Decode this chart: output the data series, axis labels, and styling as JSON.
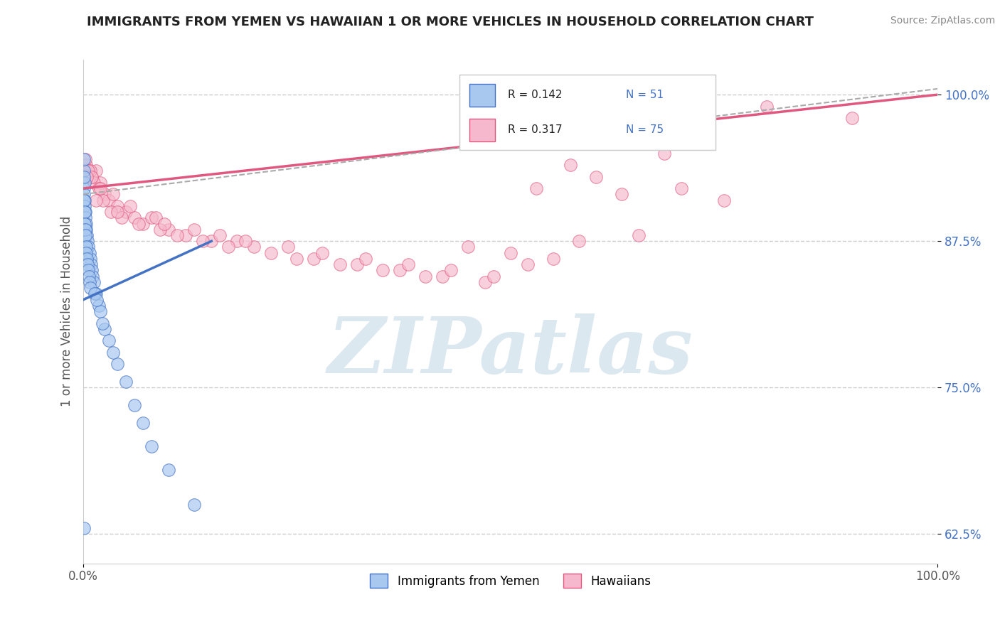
{
  "title": "IMMIGRANTS FROM YEMEN VS HAWAIIAN 1 OR MORE VEHICLES IN HOUSEHOLD CORRELATION CHART",
  "source": "Source: ZipAtlas.com",
  "ylabel": "1 or more Vehicles in Household",
  "yticks": [
    62.5,
    75.0,
    87.5,
    100.0
  ],
  "ytick_labels": [
    "62.5%",
    "75.0%",
    "87.5%",
    "100.0%"
  ],
  "blue_color": "#a8c8f0",
  "pink_color": "#f5b8cc",
  "blue_line_color": "#4472c4",
  "pink_line_color": "#e05880",
  "dashed_line_color": "#aaaaaa",
  "watermark": "ZIPatlas",
  "watermark_color_zip": "#c8d8e8",
  "watermark_color_atlas": "#d0dce8",
  "blue_scatter_x": [
    0.05,
    0.08,
    0.1,
    0.12,
    0.15,
    0.18,
    0.2,
    0.25,
    0.3,
    0.35,
    0.4,
    0.5,
    0.6,
    0.7,
    0.8,
    0.9,
    1.0,
    1.1,
    1.2,
    1.5,
    1.8,
    2.0,
    2.5,
    3.0,
    4.0,
    5.0,
    6.0,
    8.0,
    10.0,
    13.0,
    0.05,
    0.07,
    0.1,
    0.13,
    0.16,
    0.2,
    0.22,
    0.28,
    0.32,
    0.38,
    0.45,
    0.55,
    0.65,
    0.75,
    0.85,
    1.3,
    1.6,
    2.2,
    3.5,
    7.0,
    0.05
  ],
  "blue_scatter_y": [
    93.5,
    92.0,
    91.5,
    92.5,
    91.0,
    90.5,
    90.0,
    89.5,
    89.0,
    88.5,
    88.0,
    87.5,
    87.0,
    86.5,
    86.0,
    85.5,
    85.0,
    84.5,
    84.0,
    83.0,
    82.0,
    81.5,
    80.0,
    79.0,
    77.0,
    75.5,
    73.5,
    70.0,
    68.0,
    65.0,
    94.5,
    93.0,
    91.0,
    90.0,
    89.0,
    88.5,
    88.0,
    87.0,
    86.5,
    86.0,
    85.5,
    85.0,
    84.5,
    84.0,
    83.5,
    83.0,
    82.5,
    80.5,
    78.0,
    72.0,
    63.0
  ],
  "pink_scatter_x": [
    0.5,
    1.0,
    1.5,
    2.0,
    2.5,
    3.0,
    4.0,
    5.0,
    6.0,
    7.0,
    8.0,
    10.0,
    12.0,
    15.0,
    18.0,
    20.0,
    25.0,
    30.0,
    35.0,
    40.0,
    45.0,
    50.0,
    55.0,
    60.0,
    65.0,
    70.0,
    75.0,
    0.3,
    0.8,
    1.2,
    1.8,
    2.3,
    3.2,
    4.5,
    6.5,
    9.0,
    11.0,
    14.0,
    17.0,
    22.0,
    27.0,
    32.0,
    37.0,
    42.0,
    47.0,
    52.0,
    58.0,
    63.0,
    68.0,
    0.2,
    0.6,
    1.0,
    2.0,
    3.5,
    5.5,
    8.5,
    13.0,
    19.0,
    28.0,
    38.0,
    48.0,
    57.0,
    0.4,
    1.5,
    4.0,
    9.5,
    16.0,
    24.0,
    33.0,
    43.0,
    53.0,
    62.0,
    72.0,
    80.0,
    90.0
  ],
  "pink_scatter_y": [
    93.5,
    93.0,
    93.5,
    92.5,
    91.5,
    91.0,
    90.5,
    90.0,
    89.5,
    89.0,
    89.5,
    88.5,
    88.0,
    87.5,
    87.5,
    87.0,
    86.0,
    85.5,
    85.0,
    84.5,
    87.0,
    86.5,
    86.0,
    93.0,
    88.0,
    92.0,
    91.0,
    94.0,
    93.5,
    92.5,
    92.0,
    91.0,
    90.0,
    89.5,
    89.0,
    88.5,
    88.0,
    87.5,
    87.0,
    86.5,
    86.0,
    85.5,
    85.0,
    84.5,
    84.0,
    85.5,
    87.5,
    91.5,
    95.0,
    94.5,
    93.5,
    93.0,
    92.0,
    91.5,
    90.5,
    89.5,
    88.5,
    87.5,
    86.5,
    85.5,
    84.5,
    94.0,
    93.0,
    91.0,
    90.0,
    89.0,
    88.0,
    87.0,
    86.0,
    85.0,
    92.0,
    96.0,
    100.0,
    99.0,
    98.0
  ],
  "blue_trend_x0": 0,
  "blue_trend_y0": 82.5,
  "blue_trend_x1": 15,
  "blue_trend_y1": 87.5,
  "pink_trend_x0": 0,
  "pink_trend_y0": 92.0,
  "pink_trend_x1": 100,
  "pink_trend_y1": 100.0,
  "dash_trend_x0": 0,
  "dash_trend_y0": 91.5,
  "dash_trend_x1": 100,
  "dash_trend_y1": 100.5,
  "xmin": 0,
  "xmax": 100,
  "ymin": 60,
  "ymax": 103,
  "figwidth": 14.06,
  "figheight": 8.92,
  "dpi": 100
}
